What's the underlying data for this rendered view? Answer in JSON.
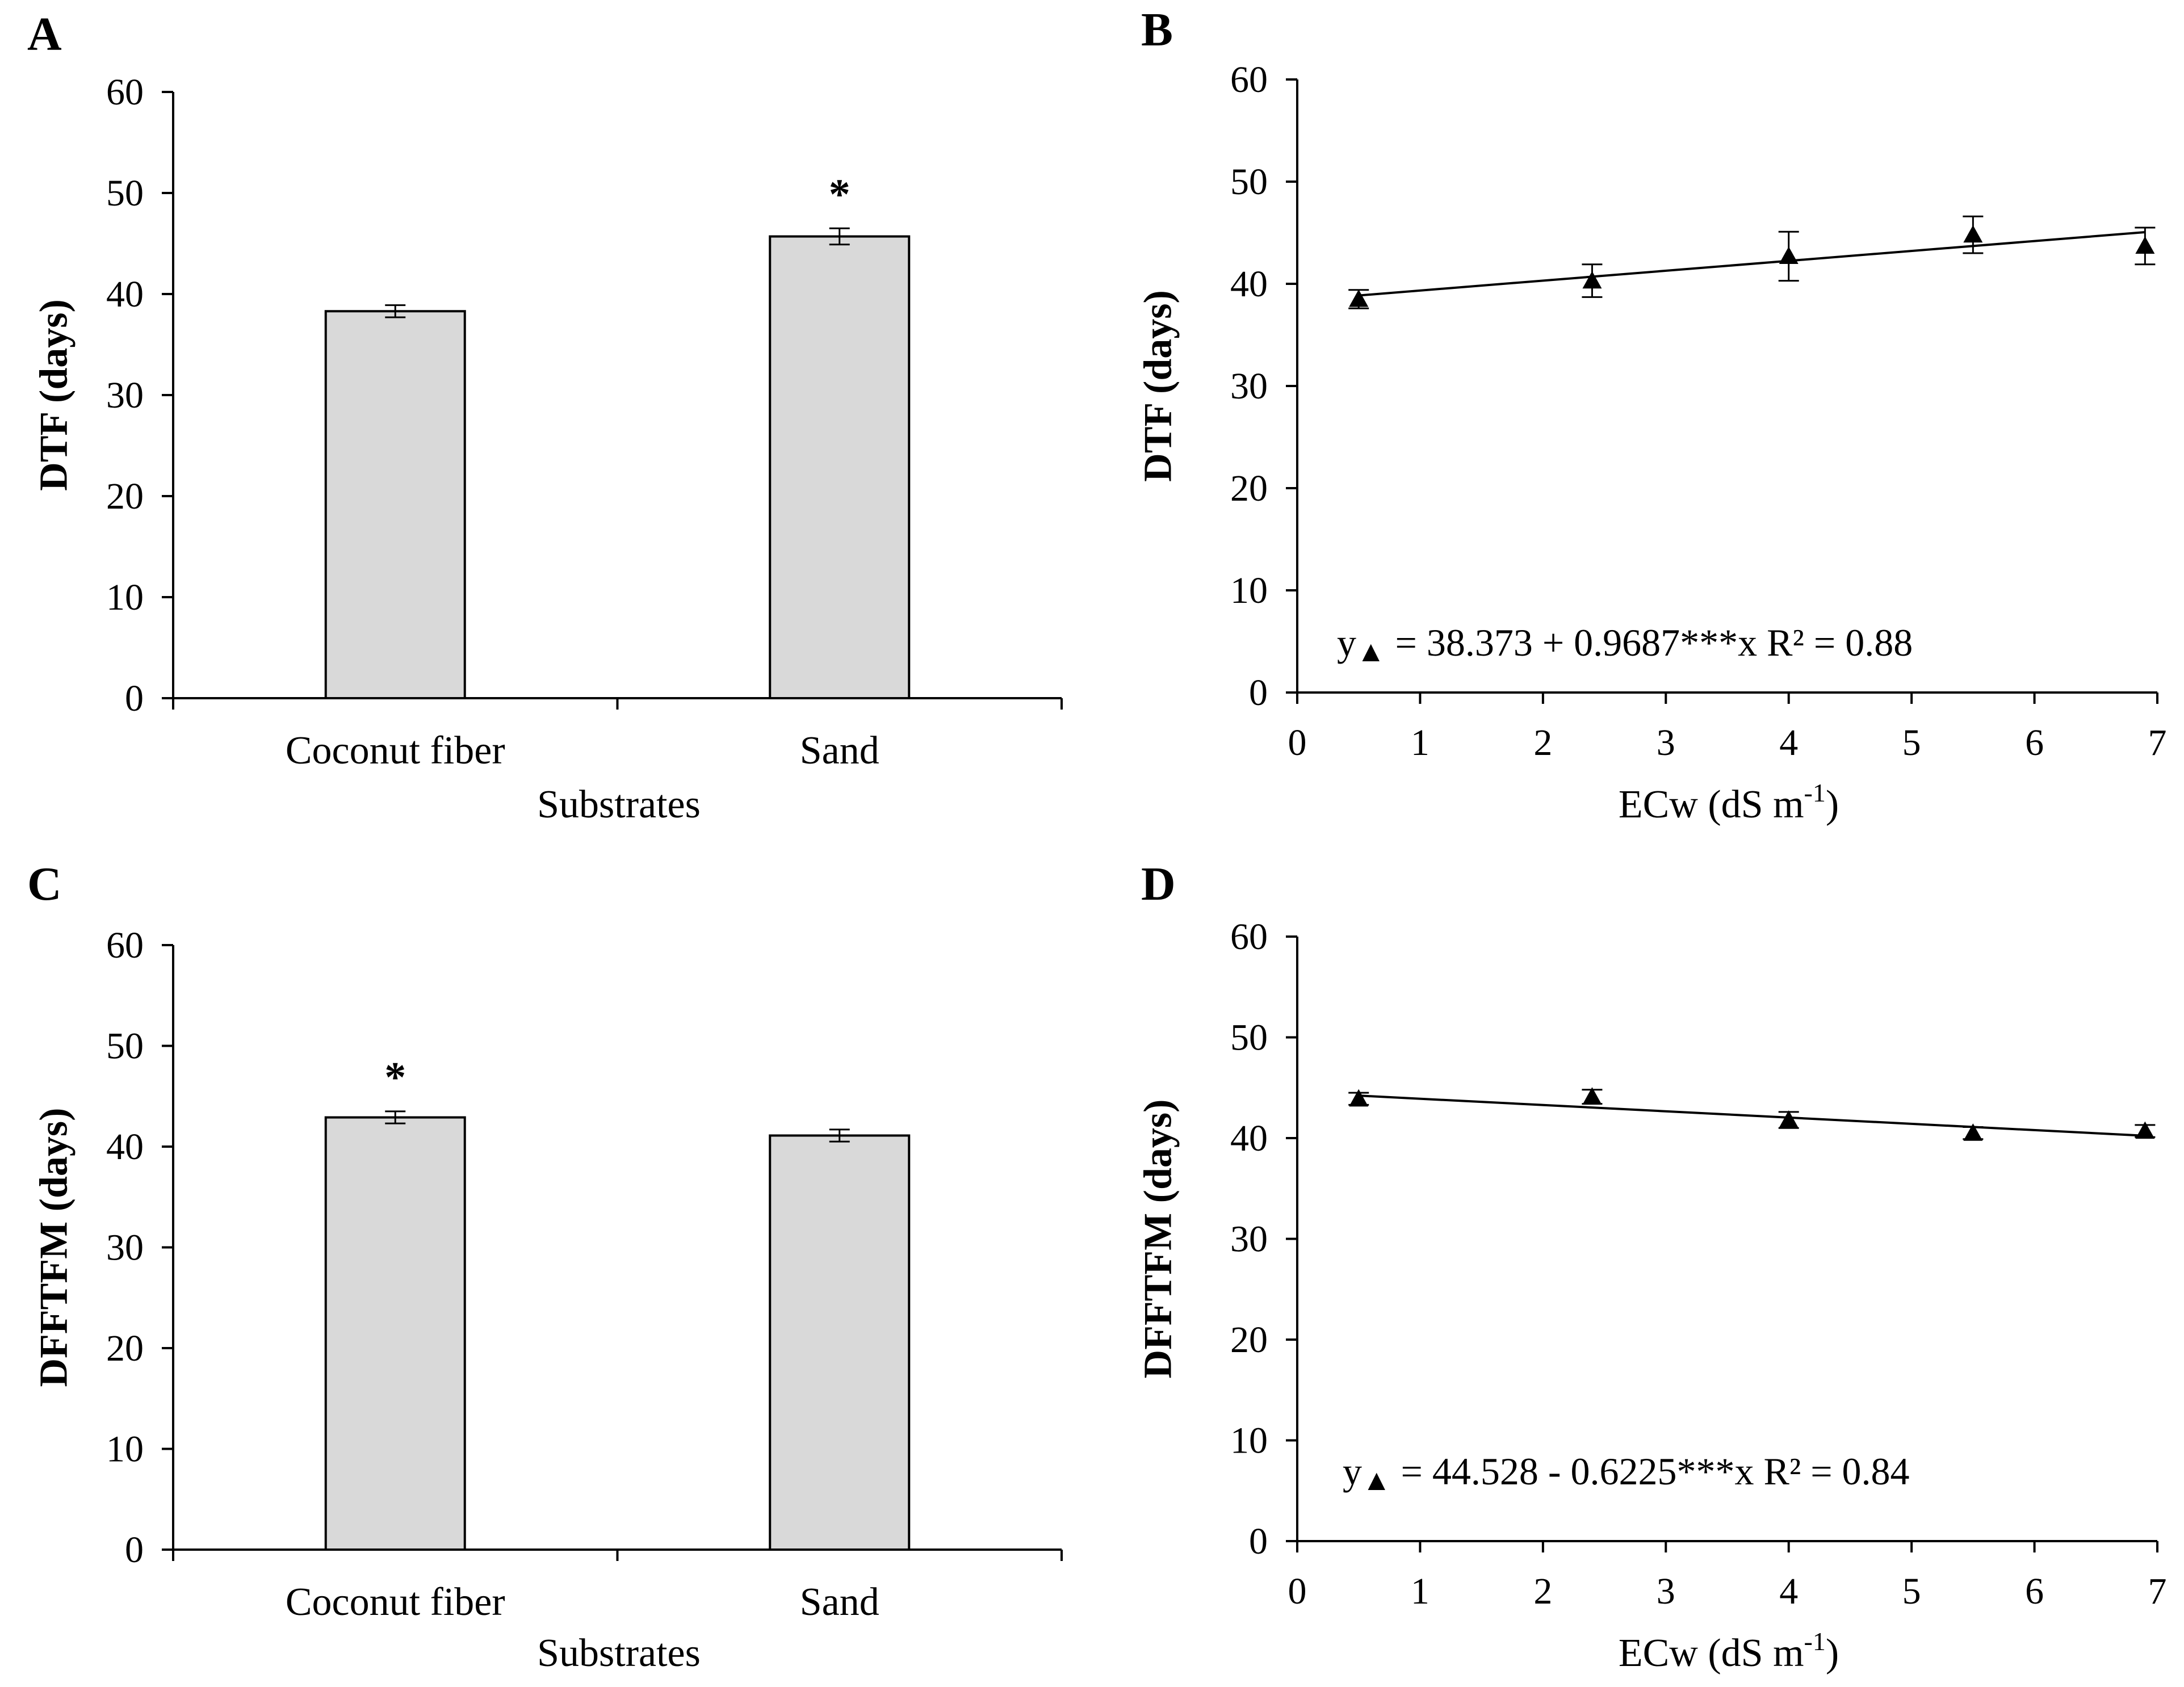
{
  "chart_data": [
    {
      "id": "A",
      "panel_label": "A",
      "type": "bar",
      "categories": [
        "Coconut fiber",
        "Sand"
      ],
      "values": [
        38.3,
        45.7
      ],
      "errors": [
        0.6,
        0.8
      ],
      "significance": [
        "",
        "*"
      ],
      "xlabel": "Substrates",
      "ylabel": "DTF (days)",
      "ylim": [
        0,
        60
      ],
      "yticks": [
        0,
        10,
        20,
        30,
        40,
        50,
        60
      ]
    },
    {
      "id": "B",
      "panel_label": "B",
      "type": "scatter",
      "x": [
        0.5,
        2.4,
        4.0,
        5.5,
        6.9
      ],
      "y": [
        38.5,
        40.3,
        42.7,
        44.8,
        43.7
      ],
      "errors": [
        0.9,
        1.6,
        2.4,
        1.8,
        1.8
      ],
      "marker": "▲",
      "trendline": {
        "intercept": 38.373,
        "slope": 0.9687
      },
      "equation": {
        "prefix": "y",
        "marker": "▲",
        "body": "= 38.373 + 0.9687***x R² = 0.88"
      },
      "xlabel": "ECw (dS m",
      "xlabel_sup": "-1",
      "xlabel_suffix": ")",
      "ylabel": "DTF (days)",
      "xlim": [
        0,
        7
      ],
      "ylim": [
        0,
        60
      ],
      "xticks": [
        0,
        1,
        2,
        3,
        4,
        5,
        6,
        7
      ],
      "yticks": [
        0,
        10,
        20,
        30,
        40,
        50,
        60
      ]
    },
    {
      "id": "C",
      "panel_label": "C",
      "type": "bar",
      "categories": [
        "Coconut fiber",
        "Sand"
      ],
      "values": [
        42.9,
        41.1
      ],
      "errors": [
        0.6,
        0.6
      ],
      "significance": [
        "*",
        ""
      ],
      "xlabel": "Substrates",
      "ylabel": "DFFTFM (days)",
      "ylim": [
        0,
        60
      ],
      "yticks": [
        0,
        10,
        20,
        30,
        40,
        50,
        60
      ]
    },
    {
      "id": "D",
      "panel_label": "D",
      "type": "scatter",
      "x": [
        0.5,
        2.4,
        4.0,
        5.5,
        6.9
      ],
      "y": [
        43.9,
        44.1,
        41.8,
        40.5,
        40.7
      ],
      "errors": [
        0.6,
        0.7,
        0.8,
        0.6,
        0.6
      ],
      "marker": "▲",
      "trendline": {
        "intercept": 44.528,
        "slope": -0.6225
      },
      "equation": {
        "prefix": "y",
        "marker": "▲",
        "body": "= 44.528 - 0.6225***x R² = 0.84"
      },
      "xlabel": "ECw (dS m",
      "xlabel_sup": "-1",
      "xlabel_suffix": ")",
      "ylabel": "DFFTFM (days)",
      "xlim": [
        0,
        7
      ],
      "ylim": [
        0,
        60
      ],
      "xticks": [
        0,
        1,
        2,
        3,
        4,
        5,
        6,
        7
      ],
      "yticks": [
        0,
        10,
        20,
        30,
        40,
        50,
        60
      ]
    }
  ]
}
